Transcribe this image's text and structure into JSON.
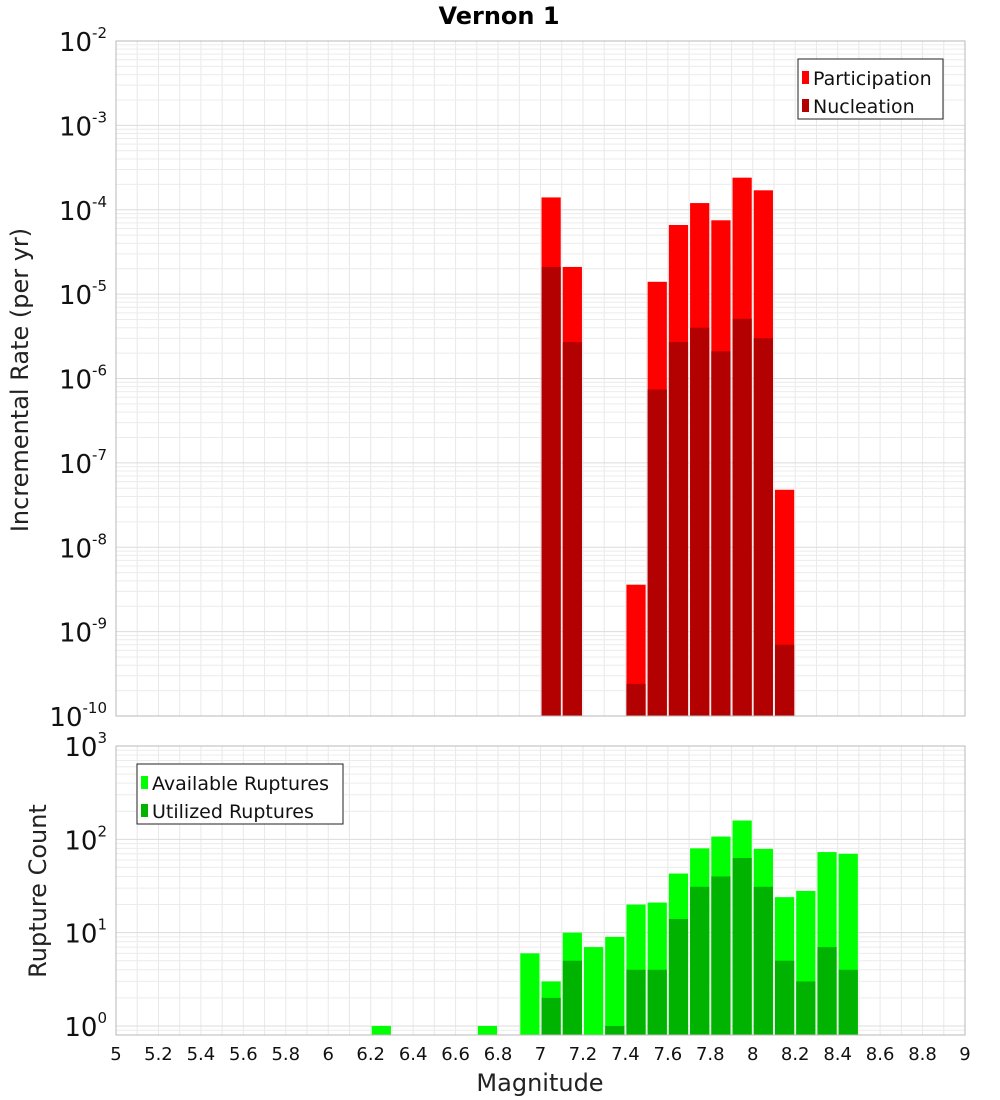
{
  "chart_data": {
    "title": "Vernon 1",
    "xlabel": "Magnitude",
    "xlim": [
      5,
      9
    ],
    "xticks": [
      "5",
      "5.2",
      "5.4",
      "5.6",
      "5.8",
      "6",
      "6.2",
      "6.4",
      "6.6",
      "6.8",
      "7",
      "7.2",
      "7.4",
      "7.6",
      "7.8",
      "8",
      "8.2",
      "8.4",
      "8.6",
      "8.8",
      "9"
    ],
    "bin_width": 0.1,
    "panels": [
      {
        "type": "bar",
        "yscale": "log",
        "ylabel": "Incremental Rate (per yr)",
        "ylim": [
          1e-10,
          0.01
        ],
        "yticks": [
          {
            "base": "10",
            "exp": "-10"
          },
          {
            "base": "10",
            "exp": "-9"
          },
          {
            "base": "10",
            "exp": "-8"
          },
          {
            "base": "10",
            "exp": "-7"
          },
          {
            "base": "10",
            "exp": "-6"
          },
          {
            "base": "10",
            "exp": "-5"
          },
          {
            "base": "10",
            "exp": "-4"
          },
          {
            "base": "10",
            "exp": "-3"
          },
          {
            "base": "10",
            "exp": "-2"
          }
        ],
        "legend_position": "top-right",
        "x": [
          7.05,
          7.15,
          7.45,
          7.55,
          7.65,
          7.75,
          7.85,
          7.95,
          8.05,
          8.15
        ],
        "series": [
          {
            "name": "Participation",
            "color": "#ff0000",
            "values": [
              0.00014,
              2.1e-05,
              3.6e-09,
              1.4e-05,
              6.6e-05,
              0.00012,
              7.5e-05,
              0.00024,
              0.00017,
              4.8e-08
            ]
          },
          {
            "name": "Nucleation",
            "color": "#b30000",
            "values": [
              2.1e-05,
              2.7e-06,
              2.4e-10,
              7.4e-07,
              2.7e-06,
              4e-06,
              2.1e-06,
              5.1e-06,
              3e-06,
              7e-10
            ]
          }
        ]
      },
      {
        "type": "bar",
        "yscale": "log",
        "ylabel": "Rupture Count",
        "ylim": [
          0.8,
          1000
        ],
        "yticks": [
          {
            "base": "10",
            "exp": "0"
          },
          {
            "base": "10",
            "exp": "1"
          },
          {
            "base": "10",
            "exp": "2"
          },
          {
            "base": "10",
            "exp": "3"
          }
        ],
        "legend_position": "top-left",
        "x": [
          6.25,
          6.75,
          6.95,
          7.05,
          7.15,
          7.25,
          7.35,
          7.45,
          7.55,
          7.65,
          7.75,
          7.85,
          7.95,
          8.05,
          8.15,
          8.25,
          8.35,
          8.45
        ],
        "series": [
          {
            "name": "Available Ruptures",
            "color": "#00ff00",
            "values": [
              1,
              1,
              6,
              3,
              10,
              7,
              9,
              20,
              21,
              43,
              80,
              107,
              159,
              79,
              24,
              28,
              73,
              70
            ]
          },
          {
            "name": "Utilized Ruptures",
            "color": "#00b300",
            "values": [
              0,
              0,
              0,
              2,
              5,
              0,
              1,
              4,
              4,
              14,
              31,
              40,
              63,
              31,
              5,
              3,
              7,
              4
            ]
          }
        ]
      }
    ]
  }
}
